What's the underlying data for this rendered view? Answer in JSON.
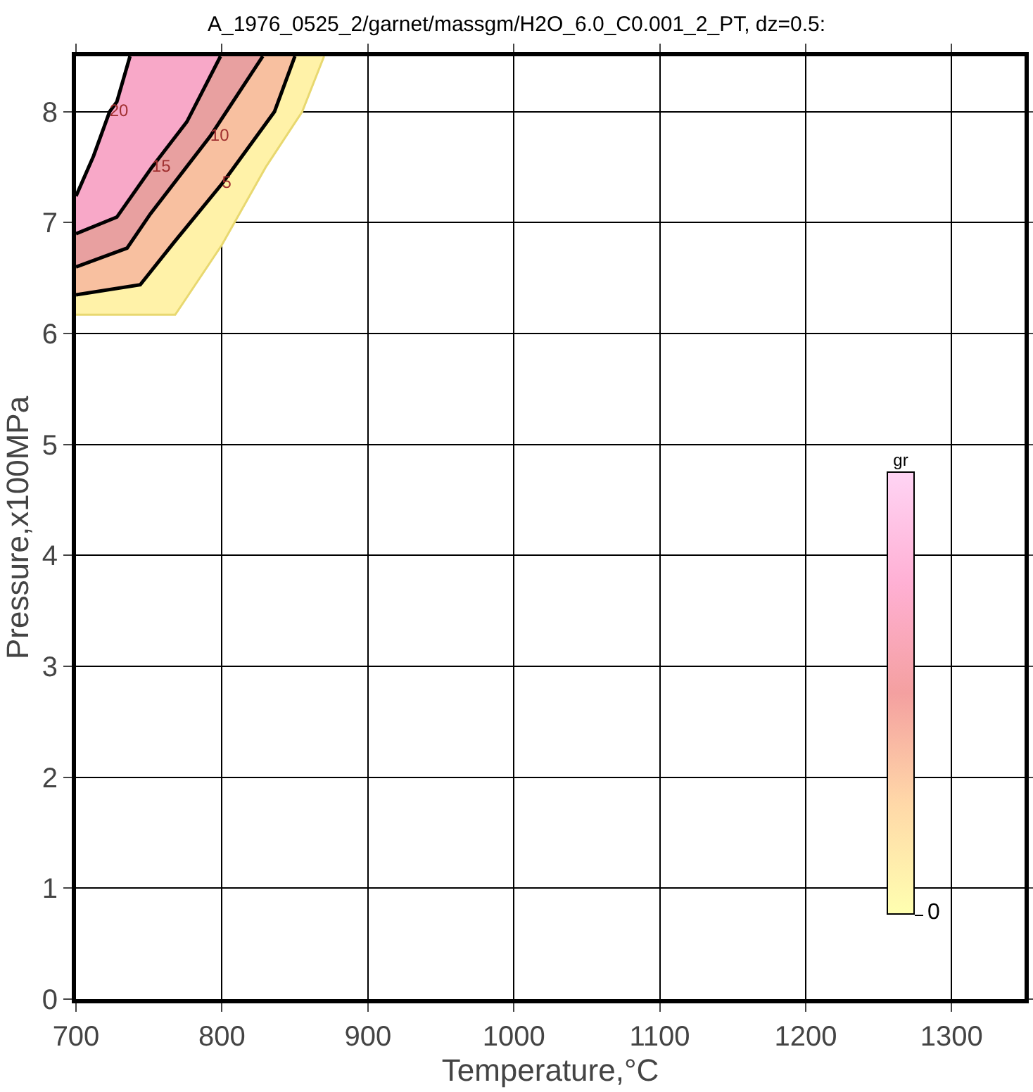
{
  "chart_data": {
    "type": "line",
    "title": "A_1976_0525_2/garnet/massgm/H2O_6.0_C0.001_2_PT, dz=0.5:",
    "xlabel": "Temperature,°C",
    "ylabel": "Pressure,x100MPa",
    "clabel": "gr",
    "annotations": [
      "0"
    ],
    "series": [
      {
        "color": "#e8d870",
        "x": [
          700,
          768,
          800,
          830,
          855,
          870
        ],
        "values": [
          6.17,
          6.17,
          6.8,
          7.5,
          8.0,
          8.5
        ]
      },
      {
        "name": "5",
        "color": "#000000",
        "x": [
          700,
          744,
          767,
          800,
          836,
          850
        ],
        "values": [
          6.35,
          6.44,
          6.82,
          7.35,
          8.0,
          8.5
        ]
      },
      {
        "name": "10",
        "color": "#000000",
        "x": [
          700,
          735,
          751,
          792,
          803,
          828
        ],
        "values": [
          6.6,
          6.77,
          7.08,
          7.78,
          8.0,
          8.5
        ]
      },
      {
        "name": "15",
        "color": "#000000",
        "x": [
          700,
          728,
          752,
          776,
          799
        ],
        "values": [
          6.9,
          7.05,
          7.5,
          7.91,
          8.5
        ]
      },
      {
        "name": "20",
        "color": "#000000",
        "x": [
          700,
          712,
          723,
          728,
          737
        ],
        "values": [
          7.24,
          7.6,
          8.0,
          8.09,
          8.5
        ]
      }
    ],
    "xlim": [
      700,
      1350
    ],
    "xticks": [
      700,
      800,
      900,
      1000,
      1100,
      1200,
      1300
    ],
    "ylim": [
      0,
      8.5
    ],
    "yticks": [
      0,
      1,
      2,
      3,
      4,
      5,
      6,
      7,
      8
    ],
    "grid": true,
    "legend": false,
    "line_style": "solid",
    "marker": "none"
  }
}
